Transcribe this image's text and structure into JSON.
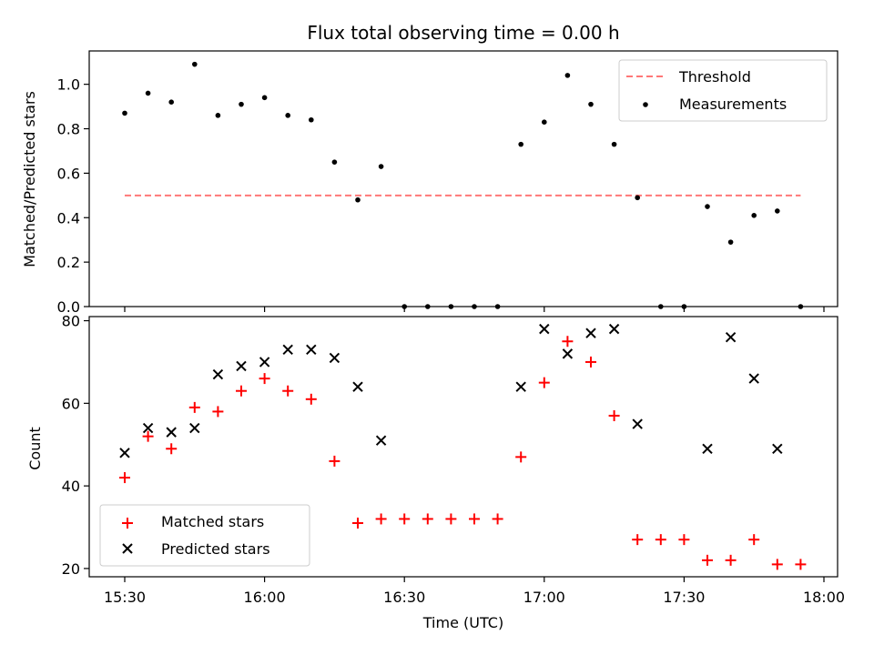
{
  "chart_data": {
    "type": "scatter",
    "title": "Flux total observing time = 0.00 h",
    "xlabel": "Time (UTC)",
    "xticks": [
      "15:30",
      "16:00",
      "16:30",
      "17:00",
      "17:30",
      "18:00"
    ],
    "panels": [
      {
        "ylabel": "Matched/Predicted stars",
        "ylim": [
          0,
          1.15
        ],
        "yticks": [
          "0.0",
          "0.2",
          "0.4",
          "0.6",
          "0.8",
          "1.0"
        ],
        "legend_position": "top-right",
        "threshold": {
          "name": "Threshold",
          "value": 0.5,
          "x_start": "15:30",
          "x_end": "17:55",
          "color": "#ff7777"
        },
        "series": [
          {
            "name": "Measurements",
            "color": "#000000",
            "marker": "dot",
            "points": [
              [
                "15:30",
                0.87
              ],
              [
                "15:35",
                0.96
              ],
              [
                "15:40",
                0.92
              ],
              [
                "15:45",
                1.09
              ],
              [
                "15:50",
                0.86
              ],
              [
                "15:55",
                0.91
              ],
              [
                "16:00",
                0.94
              ],
              [
                "16:05",
                0.86
              ],
              [
                "16:10",
                0.84
              ],
              [
                "16:15",
                0.65
              ],
              [
                "16:20",
                0.48
              ],
              [
                "16:25",
                0.63
              ],
              [
                "16:30",
                0.0
              ],
              [
                "16:35",
                0.0
              ],
              [
                "16:40",
                0.0
              ],
              [
                "16:45",
                0.0
              ],
              [
                "16:50",
                0.0
              ],
              [
                "16:55",
                0.73
              ],
              [
                "17:00",
                0.83
              ],
              [
                "17:05",
                1.04
              ],
              [
                "17:10",
                0.91
              ],
              [
                "17:15",
                0.73
              ],
              [
                "17:20",
                0.49
              ],
              [
                "17:25",
                0.0
              ],
              [
                "17:30",
                0.0
              ],
              [
                "17:35",
                0.45
              ],
              [
                "17:40",
                0.29
              ],
              [
                "17:45",
                0.41
              ],
              [
                "17:50",
                0.43
              ],
              [
                "17:55",
                0.0
              ]
            ]
          }
        ]
      },
      {
        "ylabel": "Count",
        "ylim": [
          18,
          81
        ],
        "yticks": [
          "20",
          "40",
          "60",
          "80"
        ],
        "legend_position": "bottom-left",
        "series": [
          {
            "name": "Matched stars",
            "color": "#ff0000",
            "marker": "plus",
            "points": [
              [
                "15:30",
                42
              ],
              [
                "15:35",
                52
              ],
              [
                "15:40",
                49
              ],
              [
                "15:45",
                59
              ],
              [
                "15:50",
                58
              ],
              [
                "15:55",
                63
              ],
              [
                "16:00",
                66
              ],
              [
                "16:05",
                63
              ],
              [
                "16:10",
                61
              ],
              [
                "16:15",
                46
              ],
              [
                "16:20",
                31
              ],
              [
                "16:25",
                32
              ],
              [
                "16:30",
                32
              ],
              [
                "16:35",
                32
              ],
              [
                "16:40",
                32
              ],
              [
                "16:45",
                32
              ],
              [
                "16:50",
                32
              ],
              [
                "16:55",
                47
              ],
              [
                "17:00",
                65
              ],
              [
                "17:05",
                75
              ],
              [
                "17:10",
                70
              ],
              [
                "17:15",
                57
              ],
              [
                "17:20",
                27
              ],
              [
                "17:25",
                27
              ],
              [
                "17:30",
                27
              ],
              [
                "17:35",
                22
              ],
              [
                "17:40",
                22
              ],
              [
                "17:45",
                27
              ],
              [
                "17:50",
                21
              ],
              [
                "17:55",
                21
              ]
            ]
          },
          {
            "name": "Predicted stars",
            "color": "#000000",
            "marker": "x",
            "points": [
              [
                "15:30",
                48
              ],
              [
                "15:35",
                54
              ],
              [
                "15:40",
                53
              ],
              [
                "15:45",
                54
              ],
              [
                "15:50",
                67
              ],
              [
                "15:55",
                69
              ],
              [
                "16:00",
                70
              ],
              [
                "16:05",
                73
              ],
              [
                "16:10",
                73
              ],
              [
                "16:15",
                71
              ],
              [
                "16:20",
                64
              ],
              [
                "16:25",
                51
              ],
              [
                "16:55",
                64
              ],
              [
                "17:00",
                78
              ],
              [
                "17:05",
                72
              ],
              [
                "17:10",
                77
              ],
              [
                "17:15",
                78
              ],
              [
                "17:20",
                55
              ],
              [
                "17:35",
                49
              ],
              [
                "17:40",
                76
              ],
              [
                "17:45",
                66
              ],
              [
                "17:50",
                49
              ]
            ]
          }
        ]
      }
    ]
  }
}
